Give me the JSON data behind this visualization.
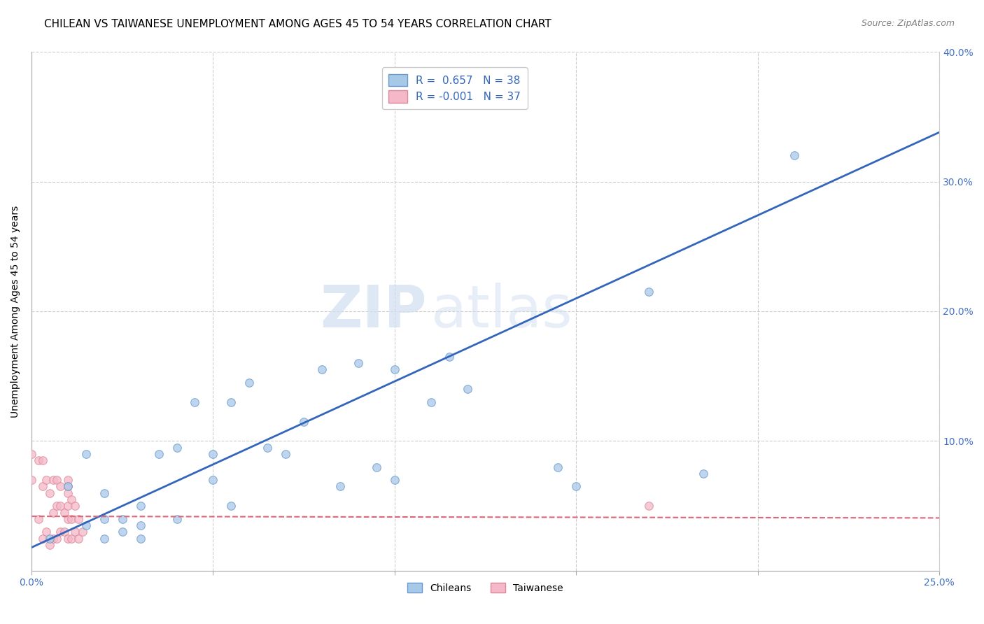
{
  "title": "CHILEAN VS TAIWANESE UNEMPLOYMENT AMONG AGES 45 TO 54 YEARS CORRELATION CHART",
  "source": "Source: ZipAtlas.com",
  "ylabel": "Unemployment Among Ages 45 to 54 years",
  "xlim": [
    0.0,
    0.25
  ],
  "ylim": [
    0.0,
    0.4
  ],
  "xticks": [
    0.0,
    0.05,
    0.1,
    0.15,
    0.2,
    0.25
  ],
  "yticks": [
    0.0,
    0.1,
    0.2,
    0.3,
    0.4
  ],
  "xtick_labels": [
    "0.0%",
    "",
    "",
    "",
    "",
    "25.0%"
  ],
  "ytick_labels_right": [
    "",
    "10.0%",
    "20.0%",
    "30.0%",
    "40.0%"
  ],
  "watermark_zip": "ZIP",
  "watermark_atlas": "atlas",
  "chilean_scatter_x": [
    0.005,
    0.01,
    0.015,
    0.015,
    0.02,
    0.02,
    0.02,
    0.025,
    0.025,
    0.03,
    0.03,
    0.03,
    0.035,
    0.04,
    0.04,
    0.045,
    0.05,
    0.05,
    0.055,
    0.055,
    0.06,
    0.065,
    0.07,
    0.075,
    0.08,
    0.085,
    0.09,
    0.095,
    0.1,
    0.1,
    0.11,
    0.115,
    0.12,
    0.145,
    0.15,
    0.17,
    0.185,
    0.21
  ],
  "chilean_scatter_y": [
    0.025,
    0.065,
    0.035,
    0.09,
    0.025,
    0.04,
    0.06,
    0.03,
    0.04,
    0.025,
    0.035,
    0.05,
    0.09,
    0.04,
    0.095,
    0.13,
    0.07,
    0.09,
    0.05,
    0.13,
    0.145,
    0.095,
    0.09,
    0.115,
    0.155,
    0.065,
    0.16,
    0.08,
    0.07,
    0.155,
    0.13,
    0.165,
    0.14,
    0.08,
    0.065,
    0.215,
    0.075,
    0.32
  ],
  "taiwanese_scatter_x": [
    0.0,
    0.0,
    0.002,
    0.002,
    0.003,
    0.003,
    0.003,
    0.004,
    0.004,
    0.005,
    0.005,
    0.006,
    0.006,
    0.006,
    0.007,
    0.007,
    0.007,
    0.008,
    0.008,
    0.008,
    0.009,
    0.009,
    0.01,
    0.01,
    0.01,
    0.01,
    0.01,
    0.01,
    0.011,
    0.011,
    0.011,
    0.012,
    0.012,
    0.013,
    0.013,
    0.014,
    0.17
  ],
  "taiwanese_scatter_y": [
    0.07,
    0.09,
    0.04,
    0.085,
    0.025,
    0.065,
    0.085,
    0.03,
    0.07,
    0.02,
    0.06,
    0.025,
    0.045,
    0.07,
    0.025,
    0.05,
    0.07,
    0.03,
    0.05,
    0.065,
    0.03,
    0.045,
    0.025,
    0.04,
    0.05,
    0.06,
    0.065,
    0.07,
    0.025,
    0.04,
    0.055,
    0.03,
    0.05,
    0.025,
    0.04,
    0.03,
    0.05
  ],
  "chilean_color": "#a8c8e8",
  "chilean_edge_color": "#6699cc",
  "taiwanese_color": "#f4b8c8",
  "taiwanese_edge_color": "#dd8899",
  "chilean_line_color": "#3366bb",
  "taiwanese_line_color": "#dd6677",
  "grid_color": "#cccccc",
  "background_color": "#ffffff",
  "title_fontsize": 11,
  "axis_label_fontsize": 10,
  "tick_fontsize": 10,
  "marker_size": 70,
  "chilean_line_slope": 1.28,
  "chilean_line_intercept": 0.018,
  "taiwanese_line_slope": -0.005,
  "taiwanese_line_intercept": 0.042
}
